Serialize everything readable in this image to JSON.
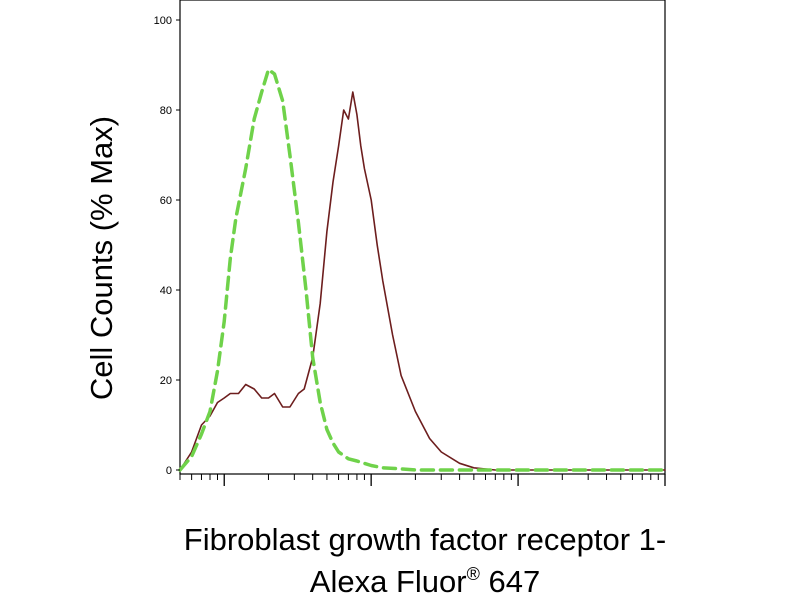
{
  "chart_data": {
    "type": "line",
    "title": "",
    "ylabel": "Cell Counts (% Max)",
    "xlabel_line1": "Fibroblast growth factor receptor 1-",
    "xlabel_line2_prefix": "Alexa Fluor",
    "xlabel_line2_sup": "®",
    "xlabel_line2_suffix": " 647",
    "xscale": "log",
    "xlim": [
      0.5,
      1000
    ],
    "ylim": [
      0,
      100
    ],
    "yticks": [
      0,
      20,
      40,
      60,
      80,
      100
    ],
    "ytick_labels": [
      "0",
      "20",
      "40",
      "60",
      "80",
      "100"
    ],
    "x_major_ticks": [
      1,
      10,
      100,
      1000
    ],
    "grid": false,
    "legend": "none",
    "series": [
      {
        "color": "#6d1e1e",
        "dash": "solid",
        "x": [
          0.5,
          0.6,
          0.7,
          0.8,
          0.9,
          1.0,
          1.1,
          1.25,
          1.4,
          1.6,
          1.8,
          2.0,
          2.2,
          2.5,
          2.8,
          3.2,
          3.5,
          4.0,
          4.5,
          5.0,
          5.5,
          6.0,
          6.5,
          7.0,
          7.5,
          8.0,
          8.5,
          9.0,
          10,
          11,
          12,
          14,
          16,
          20,
          25,
          30,
          40,
          50,
          70,
          100,
          200,
          1000
        ],
        "y": [
          0,
          4,
          10,
          12,
          15,
          16,
          17,
          17,
          19,
          18,
          16,
          16,
          17,
          14,
          14,
          17,
          18,
          25,
          37,
          53,
          64,
          72,
          80,
          78,
          84,
          79,
          72,
          67,
          60,
          50,
          42,
          30,
          21,
          13,
          7,
          4,
          1.5,
          0.5,
          0,
          0,
          0,
          0
        ]
      },
      {
        "color": "#6fd24a",
        "dash": "dashed",
        "x": [
          0.5,
          0.6,
          0.7,
          0.8,
          0.9,
          1.0,
          1.1,
          1.2,
          1.4,
          1.6,
          1.8,
          2.0,
          2.2,
          2.5,
          2.8,
          3.2,
          3.6,
          4.0,
          4.5,
          5.0,
          5.5,
          6.0,
          7.0,
          8.0,
          10,
          12,
          15,
          20,
          30,
          50,
          100,
          1000
        ],
        "y": [
          0,
          3,
          8,
          13,
          22,
          33,
          47,
          56,
          67,
          78,
          84,
          89,
          88,
          82,
          70,
          55,
          40,
          25,
          15,
          9,
          6,
          4,
          2.5,
          2,
          1,
          0.5,
          0.3,
          0,
          0,
          0,
          0,
          0
        ]
      }
    ]
  }
}
